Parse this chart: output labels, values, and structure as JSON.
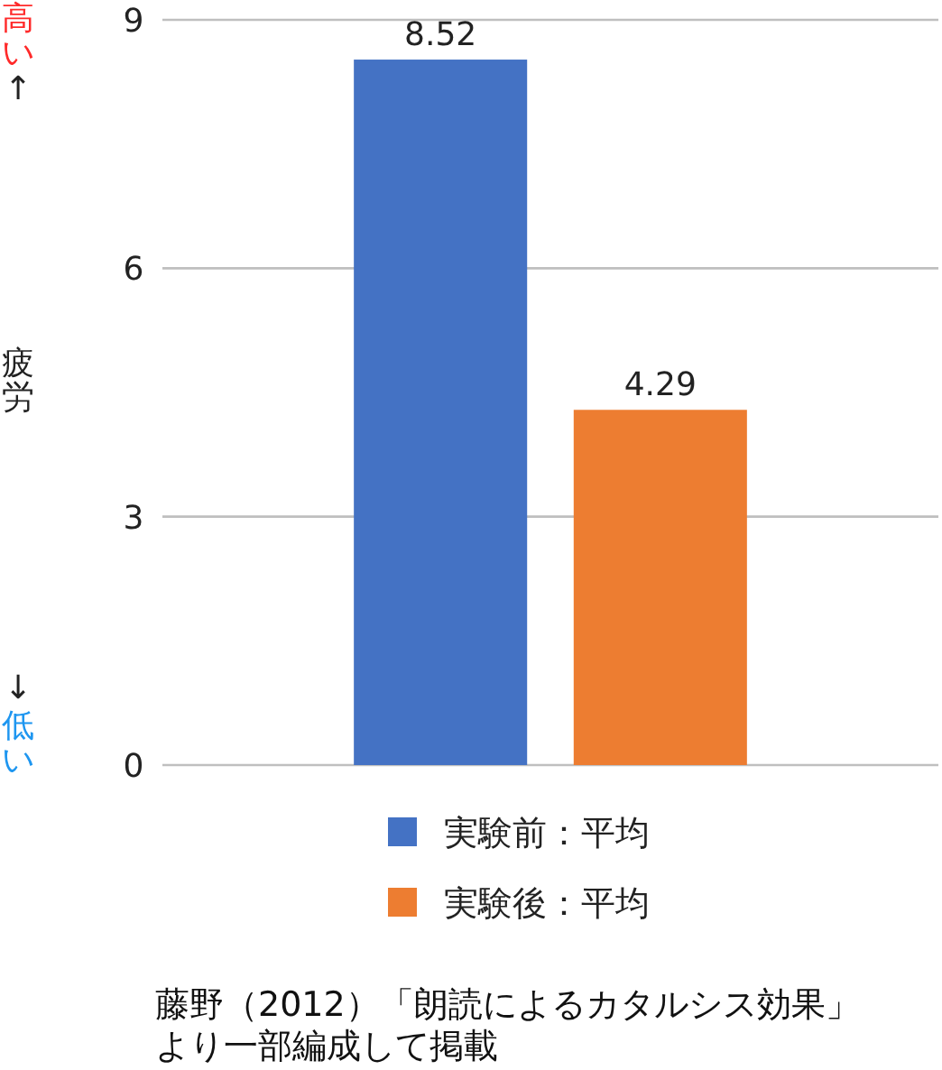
{
  "chart_data": {
    "type": "bar",
    "ylabel": "疲労",
    "annotations": [
      "高い",
      "↑",
      "↓",
      "低い",
      "藤野（2012）「朗読によるカタルシス効果」より一部編成して掲載"
    ],
    "categories": [
      null
    ],
    "series": [
      {
        "name": "実験前：平均",
        "color": "#4472c4",
        "values": [
          8.52
        ]
      },
      {
        "name": "実験後：平均",
        "color": "#ed7d31",
        "values": [
          4.29
        ]
      }
    ],
    "ylim": [
      0,
      9
    ],
    "yticks": [
      0,
      3,
      6,
      9
    ],
    "grid": "y",
    "legend": "bottom",
    "data_labels": true
  }
}
